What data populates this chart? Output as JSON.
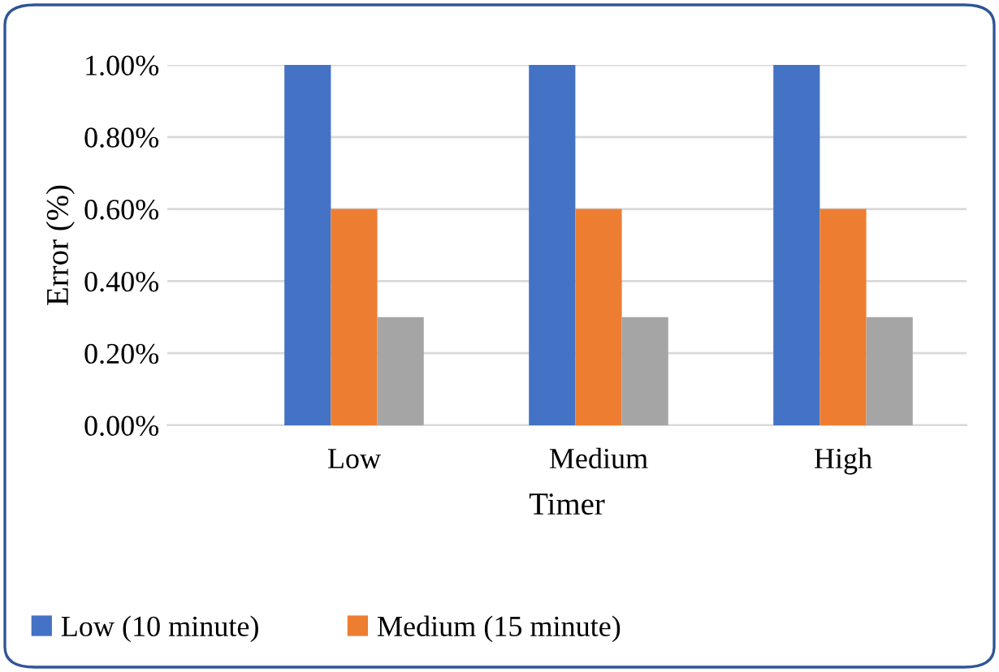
{
  "chart_data": {
    "type": "bar",
    "xlabel": "Timer",
    "ylabel": "Error (%)",
    "categories": [
      "Low",
      "Medium",
      "High"
    ],
    "series": [
      {
        "name": "Low (10 minute)",
        "color": "#4472c4",
        "values": [
          1.0,
          1.0,
          1.0
        ]
      },
      {
        "name": "Medium (15 minute)",
        "color": "#ed7d31",
        "values": [
          0.6,
          0.6,
          0.6
        ]
      },
      {
        "color": "#a5a5a5",
        "values": [
          0.3,
          0.3,
          0.3
        ]
      }
    ],
    "ylim": [
      0,
      1.0
    ],
    "yticks": [
      {
        "value": 0,
        "label": "0.00%"
      },
      {
        "value": 0.2,
        "label": "0.20%"
      },
      {
        "value": 0.4,
        "label": "0.40%"
      },
      {
        "value": 0.6,
        "label": "0.60%"
      },
      {
        "value": 0.8,
        "label": "0.80%"
      },
      {
        "value": 1.0,
        "label": "1.00%"
      }
    ],
    "grid": "y",
    "legend": "bottom"
  }
}
